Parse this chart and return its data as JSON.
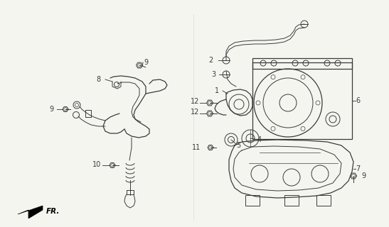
{
  "background_color": "#f5f5f0",
  "line_color": "#3a3a3a",
  "label_color": "#000000",
  "fig_width": 5.47,
  "fig_height": 3.2,
  "dpi": 100
}
